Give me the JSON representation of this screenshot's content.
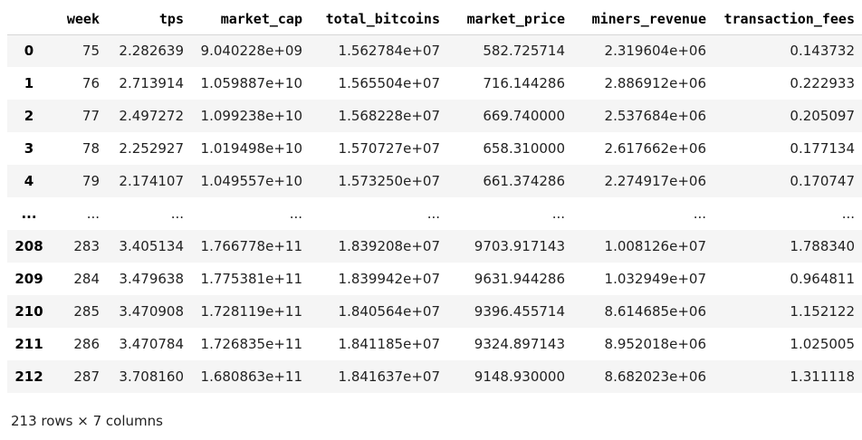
{
  "table": {
    "index_header": "",
    "columns": [
      "week",
      "tps",
      "market_cap",
      "total_bitcoins",
      "market_price",
      "miners_revenue",
      "transaction_fees"
    ],
    "rows": [
      {
        "index": "0",
        "cells": [
          "75",
          "2.282639",
          "9.040228e+09",
          "1.562784e+07",
          "582.725714",
          "2.319604e+06",
          "0.143732"
        ]
      },
      {
        "index": "1",
        "cells": [
          "76",
          "2.713914",
          "1.059887e+10",
          "1.565504e+07",
          "716.144286",
          "2.886912e+06",
          "0.222933"
        ]
      },
      {
        "index": "2",
        "cells": [
          "77",
          "2.497272",
          "1.099238e+10",
          "1.568228e+07",
          "669.740000",
          "2.537684e+06",
          "0.205097"
        ]
      },
      {
        "index": "3",
        "cells": [
          "78",
          "2.252927",
          "1.019498e+10",
          "1.570727e+07",
          "658.310000",
          "2.617662e+06",
          "0.177134"
        ]
      },
      {
        "index": "4",
        "cells": [
          "79",
          "2.174107",
          "1.049557e+10",
          "1.573250e+07",
          "661.374286",
          "2.274917e+06",
          "0.170747"
        ]
      },
      {
        "index": "...",
        "cells": [
          "...",
          "...",
          "...",
          "...",
          "...",
          "...",
          "..."
        ]
      },
      {
        "index": "208",
        "cells": [
          "283",
          "3.405134",
          "1.766778e+11",
          "1.839208e+07",
          "9703.917143",
          "1.008126e+07",
          "1.788340"
        ]
      },
      {
        "index": "209",
        "cells": [
          "284",
          "3.479638",
          "1.775381e+11",
          "1.839942e+07",
          "9631.944286",
          "1.032949e+07",
          "0.964811"
        ]
      },
      {
        "index": "210",
        "cells": [
          "285",
          "3.470908",
          "1.728119e+11",
          "1.840564e+07",
          "9396.455714",
          "8.614685e+06",
          "1.152122"
        ]
      },
      {
        "index": "211",
        "cells": [
          "286",
          "3.470784",
          "1.726835e+11",
          "1.841185e+07",
          "9324.897143",
          "8.952018e+06",
          "1.025005"
        ]
      },
      {
        "index": "212",
        "cells": [
          "287",
          "3.708160",
          "1.680863e+11",
          "1.841637e+07",
          "9148.930000",
          "8.682023e+06",
          "1.311118"
        ]
      }
    ]
  },
  "shape_note": "213 rows × 7 columns"
}
